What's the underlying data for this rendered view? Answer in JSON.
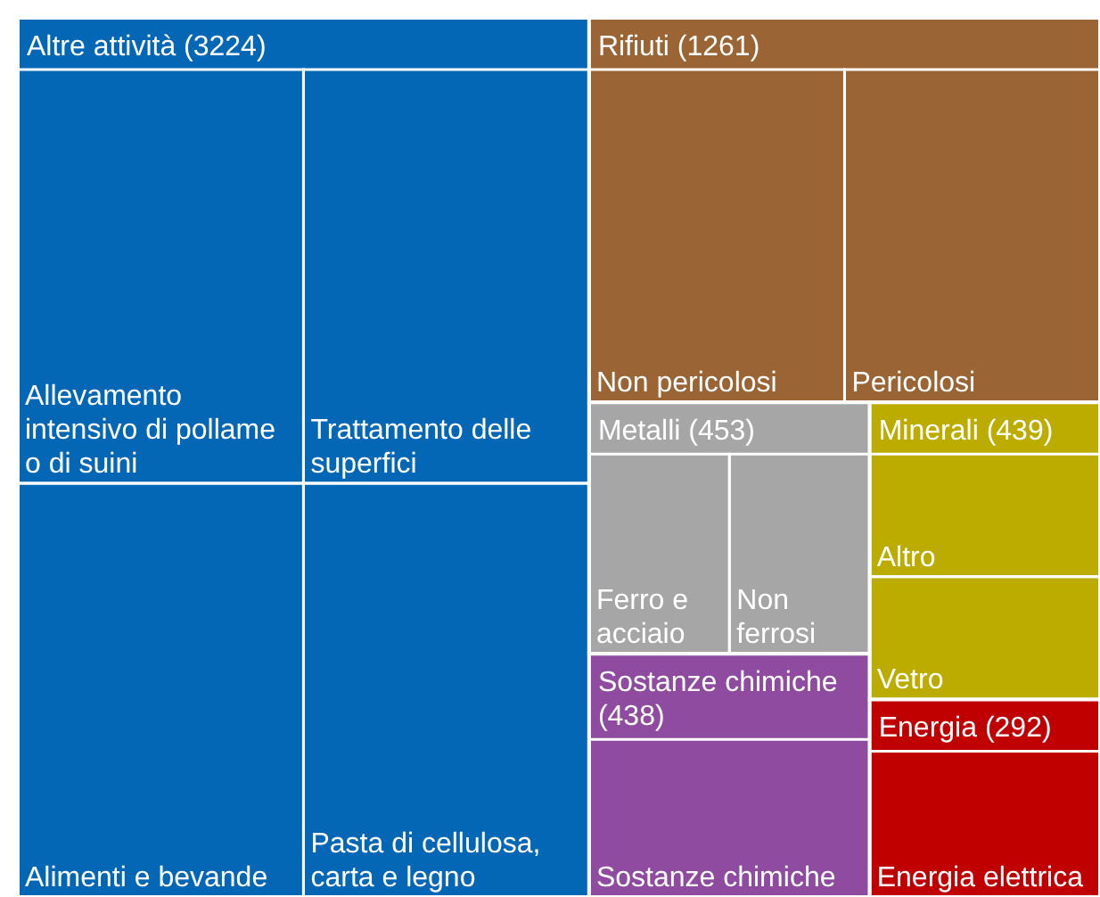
{
  "chart_data": {
    "type": "other",
    "categories": [
      "Altre attività",
      "Rifiuti",
      "Metalli",
      "Sostanze chimiche",
      "Minerali",
      "Energia"
    ],
    "values": [
      3224,
      1261,
      453,
      438,
      439,
      292
    ],
    "value_labels": [
      "(3224)",
      "(1261)",
      "(453)",
      "(438)",
      "(439)",
      "(292)"
    ],
    "colors": [
      "#0467b5",
      "#9a6434",
      "#a6a6a6",
      "#8f4ba0",
      "#bcac00",
      "#c00000"
    ],
    "annotations": [
      {
        "text": "Allevamento intensivo di pollame o di suini",
        "x": "Altre attività"
      },
      {
        "text": "Trattamento delle superfici",
        "x": "Altre attività"
      },
      {
        "text": "Alimenti e bevande",
        "x": "Altre attività"
      },
      {
        "text": "Pasta di cellulosa, carta e legno",
        "x": "Altre attività"
      },
      {
        "text": "Non pericolosi",
        "x": "Rifiuti"
      },
      {
        "text": "Pericolosi",
        "x": "Rifiuti"
      },
      {
        "text": "Ferro e acciaio",
        "x": "Metalli"
      },
      {
        "text": "Non ferrosi",
        "x": "Metalli"
      },
      {
        "text": "Sostanze chimiche",
        "x": "Sostanze chimiche"
      },
      {
        "text": "Altro",
        "x": "Minerali"
      },
      {
        "text": "Vetro",
        "x": "Minerali"
      },
      {
        "text": "Energia elettrica",
        "x": "Energia"
      }
    ]
  }
}
